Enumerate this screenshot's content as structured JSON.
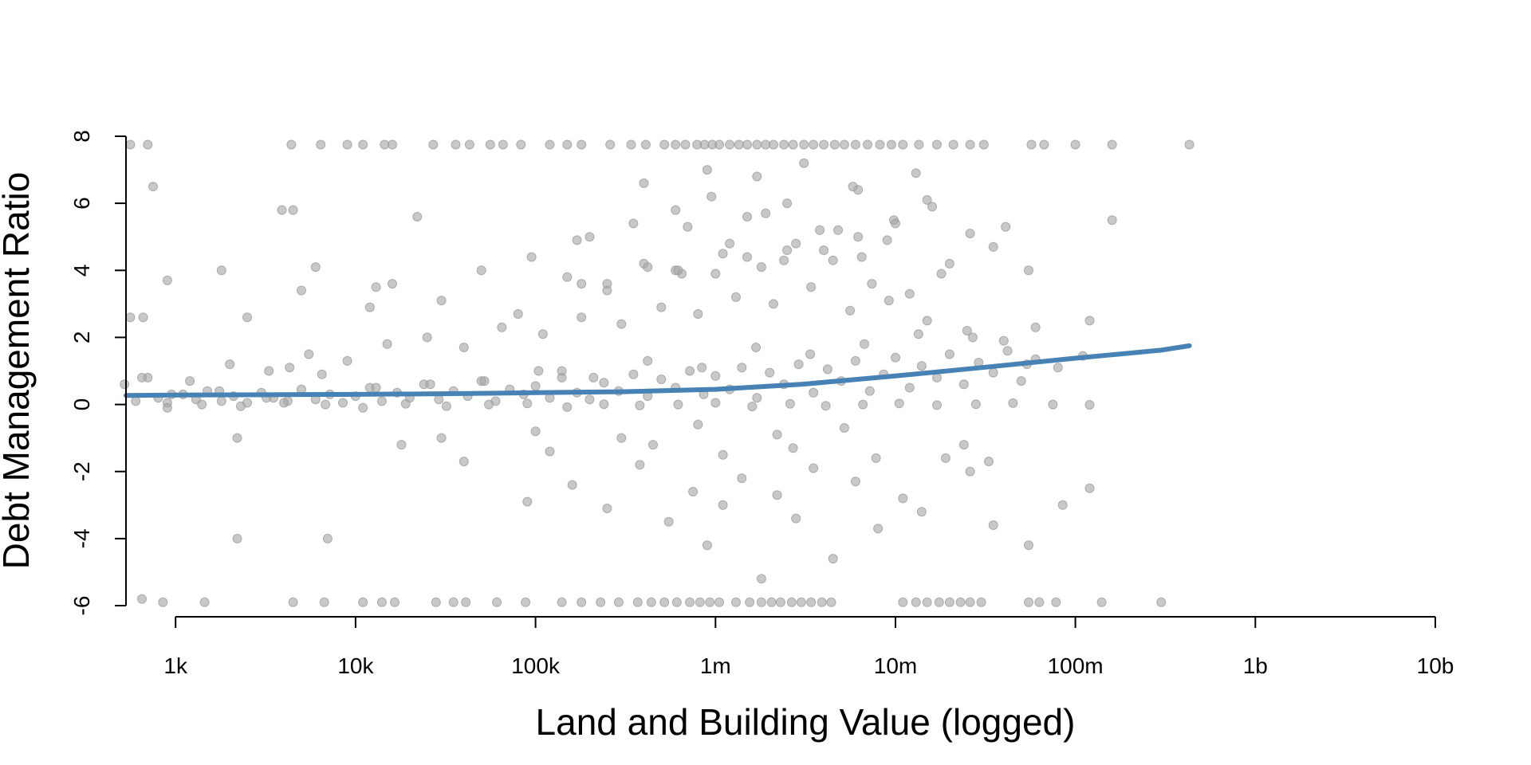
{
  "chart_data": {
    "type": "scatter",
    "title": "",
    "xlabel": "Land and Building Value (logged)",
    "ylabel": "Debt Management Ratio",
    "x_scale": "log10",
    "xlim": [
      530,
      10000000000
    ],
    "ylim": [
      -6,
      8
    ],
    "x_ticks": [
      {
        "value": 1000,
        "label": "1k"
      },
      {
        "value": 10000,
        "label": "10k"
      },
      {
        "value": 100000,
        "label": "100k"
      },
      {
        "value": 1000000,
        "label": "1m"
      },
      {
        "value": 10000000,
        "label": "10m"
      },
      {
        "value": 100000000,
        "label": "100m"
      },
      {
        "value": 1000000000,
        "label": "1b"
      },
      {
        "value": 10000000000,
        "label": "10b"
      }
    ],
    "y_ticks": [
      {
        "value": -6,
        "label": "-6"
      },
      {
        "value": -4,
        "label": "-4"
      },
      {
        "value": -2,
        "label": "-2"
      },
      {
        "value": 0,
        "label": "0"
      },
      {
        "value": 2,
        "label": "2"
      },
      {
        "value": 4,
        "label": "4"
      },
      {
        "value": 6,
        "label": "6"
      },
      {
        "value": 8,
        "label": "8"
      }
    ],
    "grid": false,
    "legend": "none",
    "point_color": "#a6a6a6",
    "point_stroke": "#999999",
    "trend_color": "#4682b4",
    "trend_line": {
      "x": [
        530,
        1000,
        3000,
        10000,
        30000,
        100000,
        300000,
        1000000,
        3000000,
        10000000,
        30000000,
        100000000,
        300000000,
        430000000
      ],
      "y": [
        0.27,
        0.28,
        0.29,
        0.3,
        0.32,
        0.35,
        0.38,
        0.45,
        0.6,
        0.85,
        1.1,
        1.38,
        1.62,
        1.75
      ]
    },
    "points": {
      "x": [
        600,
        800,
        900,
        1100,
        1300,
        1500,
        1800,
        2100,
        2500,
        3000,
        3500,
        4200,
        5000,
        6000,
        7200,
        8500,
        10000,
        12000,
        14000,
        17000,
        20000,
        24000,
        29000,
        35000,
        42000,
        50000,
        60000,
        72000,
        86000,
        100000,
        120000,
        140000,
        170000,
        200000,
        240000,
        290000,
        350000,
        420000,
        500000,
        600000,
        720000,
        860000,
        1000000,
        1200000,
        1400000,
        1700000,
        2000000,
        2400000,
        2900000,
        3500000,
        4200000,
        5000000,
        6000000,
        7200000,
        8600000,
        10000000,
        12000000,
        14000000,
        17000000,
        20000000,
        24000000,
        29000000,
        35000000,
        42000000,
        50000000,
        60000000,
        80000000,
        110000000,
        700,
        1200,
        2000,
        3300,
        5500,
        9000,
        15000,
        25000,
        40000,
        65000,
        110000,
        180000,
        300000,
        500000,
        800000,
        1300000,
        2100000,
        3400000,
        5600000,
        9200000,
        15000000,
        25000000,
        40000000,
        150000,
        250000,
        400000,
        650000,
        1100000,
        1800000,
        2800000,
        4500000,
        7400000,
        12000000,
        900,
        1400,
        2300,
        4000,
        6800,
        11000,
        19000,
        32000,
        55000,
        90000,
        150000,
        240000,
        380000,
        620000,
        1000000,
        1600000,
        2600000,
        4100000,
        6600000,
        10500000,
        17000000,
        28000000,
        45000000,
        75000000,
        120000000,
        200000,
        350000,
        600000,
        950000,
        1500000,
        2500000,
        3800000,
        6200000,
        9800000,
        16000000,
        26000000,
        900,
        2500,
        5000,
        12000,
        30000,
        80000,
        250000,
        600000,
        1500000,
        4000000,
        9000000,
        20000000,
        400000,
        900000,
        1700000,
        3100000,
        5800000,
        13000000,
        4500,
        22000,
        170000,
        700000,
        1900000,
        4800000,
        15000000,
        55000000,
        100000,
        300000,
        800000,
        2200000,
        5200000,
        560,
        650,
        750,
        1800,
        6000,
        13000,
        50000,
        180000,
        420000,
        1000000,
        2400000,
        6500000,
        18000000,
        35000000,
        60000000,
        2200,
        30000,
        120000,
        450000,
        1100000,
        2700000,
        7800000,
        24000000,
        33000000,
        650,
        2200,
        7000,
        18000,
        40000,
        90000,
        160000,
        250000,
        380000,
        550000,
        750000,
        900000,
        1100000,
        1400000,
        1800000,
        2200000,
        2800000,
        3500000,
        4500000,
        6000000,
        8000000,
        11000000,
        14000000,
        19000000,
        26000000,
        35000000,
        55000000,
        85000000,
        120000000,
        560,
        700,
        4400,
        6400,
        9000,
        11000,
        14500,
        16000,
        27000,
        36000,
        43000,
        56000,
        66000,
        83000,
        120000,
        150000,
        180000,
        260000,
        340000,
        410000,
        520000,
        600000,
        680000,
        790000,
        870000,
        960000,
        1050000,
        1200000,
        1350000,
        1500000,
        1700000,
        1900000,
        2100000,
        2400000,
        2700000,
        3100000,
        3500000,
        4000000,
        4600000,
        5200000,
        6000000,
        7000000,
        8200000,
        9500000,
        11000000,
        13500000,
        17000000,
        21000000,
        26000000,
        31000000,
        57000000,
        67000000,
        100000000,
        160000000,
        430000000,
        850,
        1450,
        4500,
        6700,
        11000,
        14000,
        16500,
        28000,
        35000,
        41000,
        61000,
        88000,
        140000,
        180000,
        230000,
        290000,
        370000,
        440000,
        520000,
        610000,
        720000,
        820000,
        930000,
        1050000,
        1300000,
        1550000,
        1800000,
        2050000,
        2300000,
        2650000,
        3000000,
        3400000,
        3900000,
        4400000,
        11000000,
        13000000,
        15000000,
        17500000,
        20000000,
        23000000,
        26000000,
        30000000,
        55000000,
        63000000,
        78000000,
        140000000,
        300000000,
        660,
        3900,
        4300,
        16000,
        95000,
        140000,
        620000,
        1200000,
        2500000,
        6200000,
        10000000,
        41000000,
        120000000,
        160000000,
        520,
        950,
        1750,
        3200,
        6500,
        13000,
        26000,
        52000,
        104000,
        210000,
        420000,
        840000,
        1680000,
        3360000,
        6720000,
        13440000,
        26880000,
        53760000
      ],
      "y": [
        0.1,
        0.2,
        0.05,
        0.3,
        0.15,
        0.4,
        0.1,
        0.25,
        0.05,
        0.35,
        0.2,
        0.1,
        0.45,
        0.15,
        0.3,
        0.05,
        0.25,
        0.5,
        0.1,
        0.35,
        0.2,
        0.6,
        0.15,
        0.4,
        0.25,
        0.7,
        0.1,
        0.45,
        0.3,
        0.55,
        0.2,
        0.8,
        0.35,
        0.15,
        0.65,
        0.4,
        0.9,
        0.25,
        0.75,
        0.5,
        1.0,
        0.3,
        0.85,
        0.45,
        1.1,
        0.2,
        0.95,
        0.6,
        1.2,
        0.35,
        1.05,
        0.7,
        1.3,
        0.4,
        0.9,
        1.4,
        0.5,
        1.15,
        0.8,
        1.5,
        0.6,
        1.25,
        0.95,
        1.6,
        0.7,
        1.35,
        1.1,
        1.45,
        0.8,
        0.7,
        1.2,
        1.0,
        1.5,
        1.3,
        1.8,
        2.0,
        1.7,
        2.3,
        2.1,
        2.6,
        2.4,
        2.9,
        2.7,
        3.2,
        3.0,
        3.5,
        2.8,
        3.1,
        2.5,
        2.2,
        1.9,
        3.8,
        3.4,
        4.2,
        3.9,
        4.5,
        4.1,
        4.8,
        4.3,
        3.6,
        3.3,
        -0.1,
        0.0,
        -0.05,
        0.05,
        0.0,
        -0.1,
        0.02,
        -0.05,
        0.0,
        0.03,
        -0.08,
        0.01,
        -0.03,
        0.0,
        0.05,
        -0.06,
        0.02,
        -0.04,
        0.0,
        0.03,
        -0.02,
        0.01,
        0.04,
        0.0,
        -0.01,
        5.0,
        5.4,
        5.8,
        6.2,
        5.6,
        6.0,
        5.2,
        6.4,
        5.5,
        5.9,
        5.1,
        3.7,
        2.6,
        3.4,
        2.9,
        3.1,
        2.7,
        3.6,
        4.0,
        4.4,
        4.6,
        4.9,
        4.2,
        6.6,
        7.0,
        6.8,
        7.2,
        6.5,
        6.9,
        5.8,
        5.6,
        4.9,
        5.3,
        5.7,
        5.2,
        6.1,
        4.0,
        -0.8,
        -1.0,
        -0.6,
        -0.9,
        -0.7,
        2.6,
        0.8,
        6.5,
        4.0,
        4.1,
        3.5,
        4.0,
        3.6,
        4.1,
        3.9,
        4.3,
        4.4,
        3.9,
        4.7,
        2.3,
        -1.0,
        -1.0,
        -1.4,
        -1.2,
        -1.5,
        -1.3,
        -1.6,
        -1.2,
        -1.7,
        -5.8,
        -4.0,
        -4.0,
        -1.2,
        -1.7,
        -2.9,
        -2.4,
        -3.1,
        -1.8,
        -3.5,
        -2.6,
        -4.2,
        -3.0,
        -2.2,
        -5.2,
        -2.7,
        -3.4,
        -1.9,
        -4.6,
        -2.3,
        -3.7,
        -2.8,
        -3.2,
        -1.6,
        -2.0,
        -3.6,
        -4.2,
        -3.0,
        -2.5,
        7.75,
        7.75,
        7.75,
        7.75,
        7.75,
        7.75,
        7.75,
        7.75,
        7.75,
        7.75,
        7.75,
        7.75,
        7.75,
        7.75,
        7.75,
        7.75,
        7.75,
        7.75,
        7.75,
        7.75,
        7.75,
        7.75,
        7.75,
        7.75,
        7.75,
        7.75,
        7.75,
        7.75,
        7.75,
        7.75,
        7.75,
        7.75,
        7.75,
        7.75,
        7.75,
        7.75,
        7.75,
        7.75,
        7.75,
        7.75,
        7.75,
        7.75,
        7.75,
        7.75,
        7.75,
        7.75,
        7.75,
        7.75,
        7.75,
        7.75,
        7.75,
        7.75,
        7.75,
        7.75,
        7.75,
        -5.9,
        -5.9,
        -5.9,
        -5.9,
        -5.9,
        -5.9,
        -5.9,
        -5.9,
        -5.9,
        -5.9,
        -5.9,
        -5.9,
        -5.9,
        -5.9,
        -5.9,
        -5.9,
        -5.9,
        -5.9,
        -5.9,
        -5.9,
        -5.9,
        -5.9,
        -5.9,
        -5.9,
        -5.9,
        -5.9,
        -5.9,
        -5.9,
        -5.9,
        -5.9,
        -5.9,
        -5.9,
        -5.9,
        -5.9,
        -5.9,
        -5.9,
        -5.9,
        -5.9,
        -5.9,
        -5.9,
        -5.9,
        -5.9,
        -5.9,
        -5.9,
        -5.9,
        -5.9,
        -5.9,
        2.6,
        5.8,
        1.1,
        3.6,
        4.4,
        1.0,
        4.0,
        4.8,
        4.6,
        5.0,
        5.4,
        5.3,
        2.5,
        5.5,
        0.6,
        0.3,
        0.4,
        0.2,
        0.9,
        0.5,
        0.6,
        0.7,
        1.0,
        0.8,
        1.3,
        1.1,
        1.7,
        1.5,
        1.8,
        2.1,
        2.0,
        1.2
      ]
    }
  }
}
